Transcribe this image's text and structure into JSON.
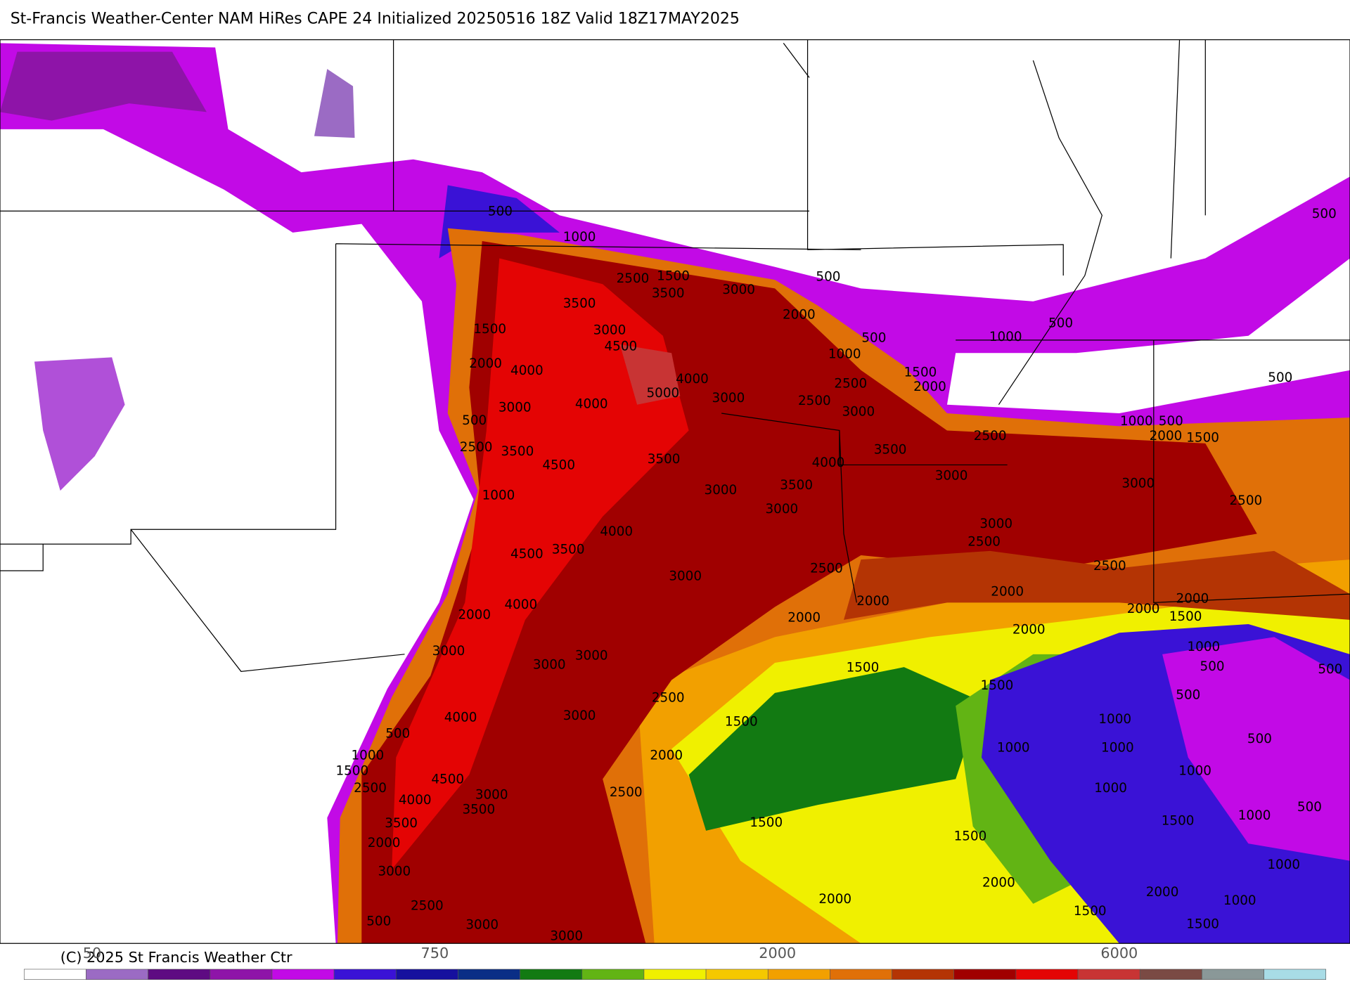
{
  "header": {
    "title": "St-Francis Weather-Center NAM HiRes CAPE  24 Initialized 20250516 18Z Valid 18Z17MAY2025"
  },
  "contour_labels": [
    500,
    1000,
    2500,
    1500,
    3500,
    3000,
    3500,
    1500,
    3000,
    4500,
    2000,
    500,
    500,
    1000,
    500,
    1000,
    1500,
    2000,
    2000,
    4000,
    4000,
    5000,
    3000,
    2500,
    2500,
    3000,
    3000,
    4000,
    500,
    2500,
    3500,
    3500,
    4500,
    1000,
    3000,
    3500,
    3500,
    4000,
    3000,
    3000,
    4000,
    3500,
    4500,
    2500,
    1000,
    500,
    2000,
    1500,
    3000,
    2500,
    3000,
    2500,
    2500,
    2500,
    3000,
    2000,
    2000,
    4000,
    2000,
    2000,
    2000,
    1500,
    2000,
    2000,
    1000,
    500,
    500,
    3000,
    3000,
    3000,
    1500,
    1500,
    2500,
    500,
    1000,
    1500,
    3000,
    4000,
    500,
    1000,
    1500,
    1000,
    1000,
    500,
    2000,
    1000,
    4500,
    3000,
    2500,
    4000,
    3500,
    2500,
    1000,
    500,
    1000,
    1500,
    3500,
    1500,
    1500,
    2000,
    3000,
    1000,
    2000,
    2000,
    2000,
    1000,
    2500,
    1500,
    500,
    3000,
    1500,
    3000,
    500,
    500
  ],
  "colorbar": {
    "colors": [
      "#ffffff",
      "#9b6bc4",
      "#5e0b82",
      "#8e14a8",
      "#c20ae6",
      "#3a12d6",
      "#16109e",
      "#0a2e86",
      "#127a12",
      "#62b414",
      "#f0f000",
      "#f5c800",
      "#f2a000",
      "#e07008",
      "#b43404",
      "#a00000",
      "#e40404",
      "#c83434",
      "#7a4a44",
      "#8a9898",
      "#a8dce6"
    ],
    "labels": [
      "50",
      "750",
      "2000",
      "6000"
    ]
  },
  "footer": {
    "copyright": "(C) 2025 St Francis Weather Ctr"
  }
}
